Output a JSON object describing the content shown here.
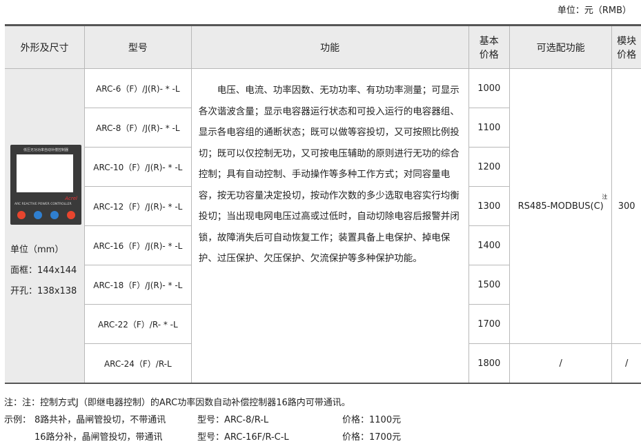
{
  "unit_label": "单位：元（RMB）",
  "headers": [
    "外形及尺寸",
    "型号",
    "功能",
    "基本\n价格",
    "可选配功能",
    "模块\n价格"
  ],
  "device": {
    "panel_title": "低压无功功率自动补偿控制器",
    "panel_label": "ARC REACTIVE POWER CONTROLLER",
    "brand": "Acrel",
    "button_colors": [
      "#e8452e",
      "#2f7fd0",
      "#2f7fd0",
      "#e8452e"
    ]
  },
  "dimensions": [
    "单位（mm）",
    "面框：144x144",
    "开孔：138x138"
  ],
  "rows": [
    {
      "model": "ARC-6（F）/J(R)- * -L",
      "price": "1000"
    },
    {
      "model": "ARC-8（F）/J(R)- * -L",
      "price": "1100"
    },
    {
      "model": "ARC-10（F）/J(R)- * -L",
      "price": "1200"
    },
    {
      "model": "ARC-12（F）/J(R)- * -L",
      "price": "1300"
    },
    {
      "model": "ARC-16（F）/J(R)- * -L",
      "price": "1400"
    },
    {
      "model": "ARC-18（F）/J(R)- * -L",
      "price": "1500"
    },
    {
      "model": "ARC-22（F）/R- * -L",
      "price": "1700"
    },
    {
      "model": "ARC-24（F）/R-L",
      "price": "1800"
    }
  ],
  "function_text": "　　电压、电流、功率因数、无功功率、有功功率测量；可显示各次谐波含量；显示电容器运行状态和可投入运行的电容器组、显示各电容组的通断状态；既可以做等容投切，又可按照比例投切；既可以仅控制无功，又可按电压辅助的原则进行无功的综合控制；具有自动控制、手动操作等多种工作方式；对同容量电容，按无功容量决定投切，按动作次数的多少选取电容实行均衡投切；当出现电网电压过高或过低时，自动切除电容后报警并闭锁，故障消失后可自动恢复工作；装置具备上电保护、掉电保护、过压保护、欠压保护、欠流保护等多种保护功能。",
  "option": {
    "text": "RS485-MODBUS(C)",
    "note_mark": "注",
    "last": "/"
  },
  "module_price": {
    "value": "300",
    "last": "/"
  },
  "notes": {
    "line1": "注：注：控制方式J（即继电器控制）的ARC功率因数自动补偿控制器16路内可带通讯。",
    "examples": [
      {
        "prefix": "示例：",
        "desc": "8路共补，晶闸管投切，不带通讯",
        "model": "型号：ARC-8/R-L",
        "price": "价格：1100元"
      },
      {
        "prefix": "",
        "desc": "16路分补，晶闸管投切，带通讯",
        "model": "型号：ARC-16F/R-C-L",
        "price": "价格：1700元"
      }
    ]
  }
}
